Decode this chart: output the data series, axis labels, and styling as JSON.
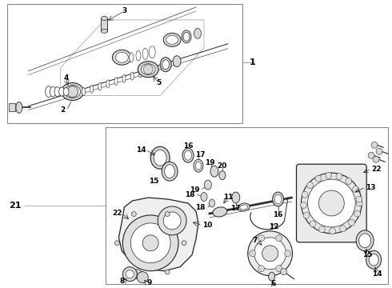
{
  "bg_color": "#ffffff",
  "line_color": "#222222",
  "gray_light": "#d8d8d8",
  "gray_mid": "#b0b0b0",
  "gray_dark": "#888888",
  "border_color": "#666666",
  "fs": 6.5,
  "fs_big": 8.0
}
